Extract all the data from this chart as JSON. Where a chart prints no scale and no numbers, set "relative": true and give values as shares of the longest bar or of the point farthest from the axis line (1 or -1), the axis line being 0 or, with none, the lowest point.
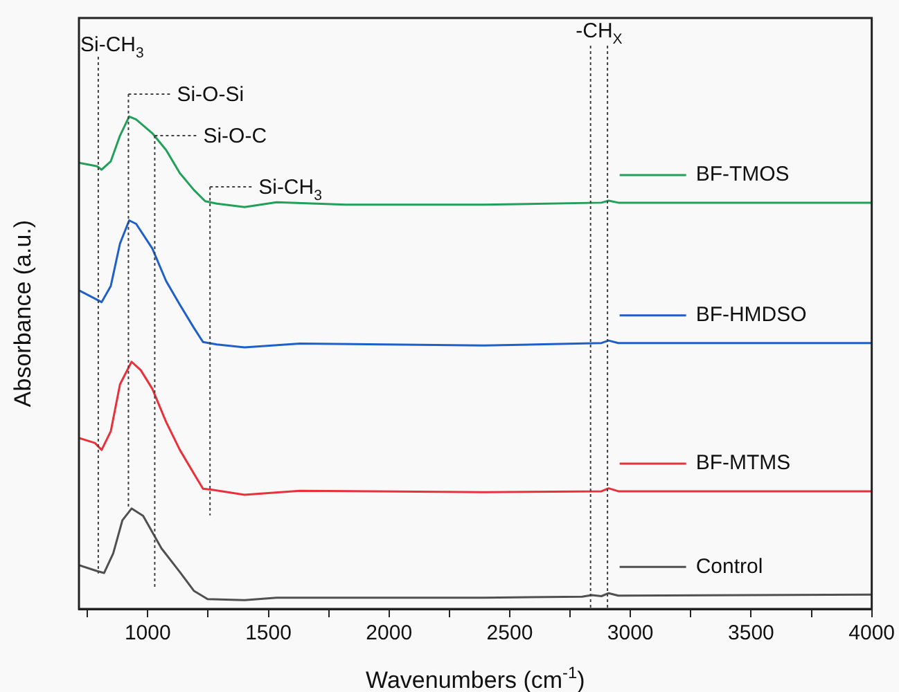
{
  "chart_data": {
    "type": "line",
    "relative": true,
    "xlabel": "Wavenumbers (cm$^{-1}$)",
    "ylabel": "Absorbance (a.u.)",
    "xlim": [
      715,
      4000
    ],
    "xticks": [
      {
        "value": 750,
        "label": null
      },
      1000,
      {
        "value": 1250,
        "label": null
      },
      1500,
      {
        "value": 1750,
        "label": null
      },
      2000,
      {
        "value": 2250,
        "label": null
      },
      2500,
      {
        "value": 2750,
        "label": null
      },
      3000,
      {
        "value": 3250,
        "label": null
      },
      3500,
      {
        "value": 3750,
        "label": null
      },
      4000
    ],
    "grid": false,
    "legend": "right",
    "marker": "none",
    "line_style": "solid",
    "series": [
      {
        "name": "Control",
        "color": "#505050",
        "x": [
          715,
          790,
          819,
          857,
          895,
          933,
          981,
          1057,
          1133,
          1191,
          1248,
          1401,
          1534,
          2393,
          2800,
          2840,
          2880,
          2910,
          2950,
          4000
        ],
        "values": [
          0.089,
          0.077,
          0.073,
          0.113,
          0.18,
          0.204,
          0.189,
          0.123,
          0.075,
          0.037,
          0.02,
          0.018,
          0.023,
          0.023,
          0.025,
          0.028,
          0.026,
          0.032,
          0.027,
          0.029
        ]
      },
      {
        "name": "BF-MTMS",
        "color": "#e8313a",
        "x": [
          715,
          781,
          809,
          847,
          885,
          933,
          971,
          1019,
          1076,
          1133,
          1191,
          1229,
          1267,
          1401,
          1630,
          2393,
          2880,
          2910,
          2950,
          4000
        ],
        "values": [
          0.347,
          0.337,
          0.323,
          0.361,
          0.456,
          0.502,
          0.485,
          0.447,
          0.38,
          0.323,
          0.275,
          0.244,
          0.242,
          0.232,
          0.24,
          0.237,
          0.239,
          0.245,
          0.239,
          0.239
        ]
      },
      {
        "name": "BF-HMDSO",
        "color": "#1f5fc8",
        "x": [
          715,
          790,
          809,
          847,
          885,
          923,
          952,
          1019,
          1076,
          1133,
          1191,
          1229,
          1286,
          1401,
          1630,
          2393,
          2880,
          2910,
          2950,
          4000
        ],
        "values": [
          0.647,
          0.628,
          0.623,
          0.656,
          0.742,
          0.789,
          0.782,
          0.732,
          0.666,
          0.618,
          0.571,
          0.542,
          0.537,
          0.531,
          0.539,
          0.535,
          0.54,
          0.545,
          0.54,
          0.54
        ]
      },
      {
        "name": "BF-TMOS",
        "color": "#22a05a",
        "x": [
          715,
          790,
          809,
          847,
          885,
          923,
          952,
          1019,
          1076,
          1133,
          1191,
          1238,
          1286,
          1401,
          1534,
          1820,
          2393,
          2880,
          2910,
          2950,
          4000
        ],
        "values": [
          0.906,
          0.899,
          0.892,
          0.909,
          0.961,
          1,
          0.994,
          0.966,
          0.932,
          0.885,
          0.851,
          0.828,
          0.823,
          0.816,
          0.826,
          0.821,
          0.821,
          0.825,
          0.829,
          0.825,
          0.825
        ]
      }
    ],
    "ref_lines": [
      {
        "axis": "x",
        "value": 795,
        "label": "Si-CH$_{3}$",
        "line_style": "dotted",
        "color": "#404040"
      },
      {
        "axis": "x",
        "value": 920,
        "label": "Si-O-Si",
        "line_style": "dotted",
        "color": "#404040"
      },
      {
        "axis": "x",
        "value": 1029,
        "label": "Si-O-C",
        "line_style": "dotted",
        "color": "#404040"
      },
      {
        "axis": "x",
        "value": 1258,
        "label": "Si-CH$_{3}$",
        "line_style": "dotted",
        "color": "#404040"
      },
      {
        "axis": "x",
        "value": 2835,
        "label": "-CH$_{X}$",
        "line_style": "dotted",
        "color": "#404040"
      },
      {
        "axis": "x",
        "value": 2905,
        "label": null,
        "line_style": "dotted",
        "color": "#404040"
      }
    ]
  }
}
